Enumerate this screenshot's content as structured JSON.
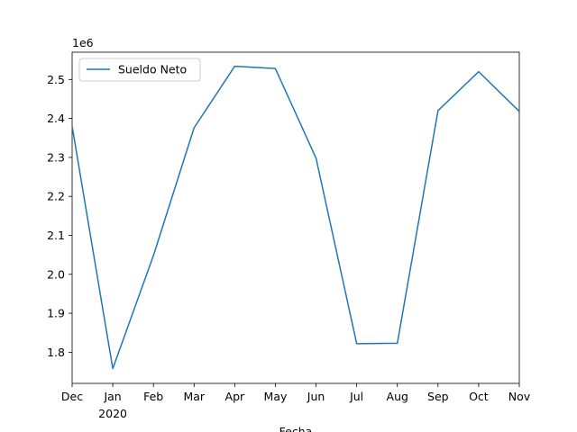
{
  "chart_data": {
    "type": "line",
    "title": "",
    "xlabel": "Fecha",
    "ylabel": "",
    "y_offset_label": "1e6",
    "x_tick_labels": [
      "Dec",
      "Jan",
      "Feb",
      "Mar",
      "Apr",
      "May",
      "Jun",
      "Jul",
      "Aug",
      "Sep",
      "Oct",
      "Nov"
    ],
    "x_year_label": "2020",
    "x": [
      "2019-12",
      "2020-01",
      "2020-02",
      "2020-03",
      "2020-04",
      "2020-05",
      "2020-06",
      "2020-07",
      "2020-08",
      "2020-09",
      "2020-10",
      "2020-11"
    ],
    "series": [
      {
        "name": "Sueldo Neto",
        "color": "#1f77b4",
        "values": [
          2380000,
          1758000,
          2048000,
          2376000,
          2534000,
          2528000,
          2298000,
          1822000,
          1823000,
          2420000,
          2520000,
          2418000
        ]
      }
    ],
    "y_ticks": [
      1.8,
      1.9,
      2.0,
      2.1,
      2.2,
      2.3,
      2.4,
      2.5
    ],
    "y_tick_labels": [
      "1.8",
      "1.9",
      "2.0",
      "2.1",
      "2.2",
      "2.3",
      "2.4",
      "2.5"
    ],
    "ylim": [
      1720000,
      2570000
    ],
    "grid": false,
    "legend_position": "upper left"
  }
}
